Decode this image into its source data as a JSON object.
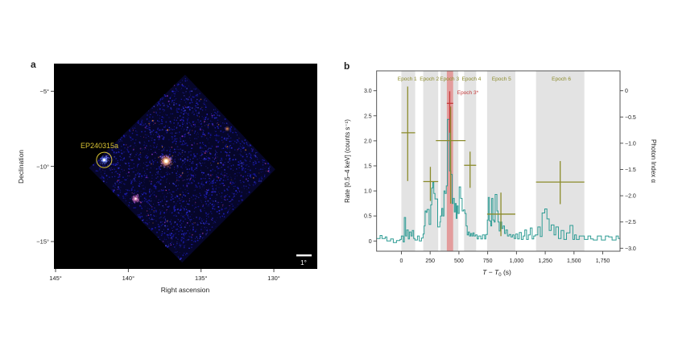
{
  "figure": {
    "panel_a": {
      "label": "a",
      "xlabel": "Right ascension",
      "ylabel": "Declination",
      "x_ticks": [
        {
          "value": 145,
          "label": "145°"
        },
        {
          "value": 140,
          "label": "140°"
        },
        {
          "value": 135,
          "label": "135°"
        },
        {
          "value": 130,
          "label": "130°"
        }
      ],
      "y_ticks": [
        {
          "value": -5,
          "label": "−5°"
        },
        {
          "value": -10,
          "label": "−10°"
        },
        {
          "value": -15,
          "label": "−15°"
        }
      ],
      "source_label": "EP240315a",
      "scale_bar_label": "1°",
      "label_color": "#d9c335"
    },
    "panel_b": {
      "label": "b",
      "xlabel_parts": [
        [
          "T",
          "i"
        ],
        [
          " − ",
          "n"
        ],
        [
          "T",
          "i"
        ],
        [
          "0",
          "sub"
        ],
        [
          " (s)",
          "n"
        ]
      ],
      "ylabel_left": "Rate [0.5–4 keV] (counts s⁻¹)",
      "ylabel_right": "Photon Index α",
      "x_tick_labels": [
        "0",
        "250",
        "500",
        "750",
        "1,000",
        "1,250",
        "1,500",
        "1,750"
      ],
      "y_tick_labels_left": [
        "0",
        "0.5",
        "1.0",
        "1.5",
        "2.0",
        "2.5",
        "3.0"
      ],
      "y_tick_labels_right": [
        "0",
        "−0.5",
        "−1.0",
        "−1.5",
        "−2.0",
        "−2.5",
        "−3.0"
      ],
      "colors": {
        "light_curve": "#2d9c94",
        "epoch_olive": "#8b8b2b",
        "epoch_red": "#c43a3a",
        "band_gray": "#e3e3e3",
        "band_red": "#e39c9c"
      }
    }
  },
  "chart_data": [
    {
      "type": "heatmap",
      "title": "X-ray sky image (WXT field of view)",
      "xlabel": "Right ascension",
      "ylabel": "Declination",
      "x_ticks_deg": [
        145,
        140,
        135,
        130
      ],
      "y_ticks_deg": [
        -5,
        -10,
        -15
      ],
      "x_range_deg": [
        145.1,
        127.0
      ],
      "y_range_deg": [
        -3.2,
        -16.8
      ],
      "field_diamond_deg": [
        [
          136.1,
          -3.9
        ],
        [
          129.9,
          -10.2
        ],
        [
          136.3,
          -16.4
        ],
        [
          142.7,
          -10.1
        ]
      ],
      "sources": [
        {
          "name": "EP240315a",
          "ra": 141.66,
          "dec": -9.57,
          "circled": true
        },
        {
          "name": "bright-source",
          "ra": 137.4,
          "dec": -9.65,
          "circled": false
        },
        {
          "name": "source-2",
          "ra": 139.5,
          "dec": -12.15,
          "circled": false
        },
        {
          "name": "faint-source",
          "ra": 133.2,
          "dec": -7.5,
          "circled": false
        }
      ],
      "annotation": "EP240315a",
      "scale_bar_deg": 1
    },
    {
      "type": "line",
      "xlabel": "T − T₀ (s)",
      "ylabel_left": "Rate [0.5–4 keV] (counts s⁻¹)",
      "ylabel_right": "Photon Index α",
      "xlim": [
        -215,
        1900
      ],
      "ylim_left": [
        -0.2,
        3.4
      ],
      "ylim_right": [
        0.37,
        -3.05
      ],
      "x_ticks": [
        0,
        250,
        500,
        750,
        1000,
        1250,
        1500,
        1750
      ],
      "y_ticks_left": [
        0,
        0.5,
        1.0,
        1.5,
        2.0,
        2.5,
        3.0
      ],
      "y_ticks_right": [
        0,
        -0.5,
        -1.0,
        -1.5,
        -2.0,
        -2.5,
        -3.0
      ],
      "grid": false,
      "light_curve_step": [
        [
          -215,
          0.05
        ],
        [
          -185,
          0.11
        ],
        [
          -168,
          0.05
        ],
        [
          -140,
          0.08
        ],
        [
          -126,
          0.0
        ],
        [
          -93,
          0.04
        ],
        [
          -70,
          -0.03
        ],
        [
          -42,
          0.01
        ],
        [
          -12,
          0.03
        ],
        [
          0,
          0.1
        ],
        [
          16,
          -0.02
        ],
        [
          26,
          0.47
        ],
        [
          37,
          0.1
        ],
        [
          47,
          0.22
        ],
        [
          60,
          0.04
        ],
        [
          70,
          0.18
        ],
        [
          84,
          0.1
        ],
        [
          95,
          0.21
        ],
        [
          107,
          0.05
        ],
        [
          118,
          0.02
        ],
        [
          140,
          0.1
        ],
        [
          156,
          0.0
        ],
        [
          175,
          0.06
        ],
        [
          189,
          0.14
        ],
        [
          198,
          0.3
        ],
        [
          206,
          0.6
        ],
        [
          215,
          0.57
        ],
        [
          224,
          0.63
        ],
        [
          241,
          0.33
        ],
        [
          255,
          0.72
        ],
        [
          264,
          1.06
        ],
        [
          273,
          1.17
        ],
        [
          282,
          0.95
        ],
        [
          292,
          0.84
        ],
        [
          315,
          0.28
        ],
        [
          334,
          0.38
        ],
        [
          340,
          0.5
        ],
        [
          350,
          0.65
        ],
        [
          360,
          0.5
        ],
        [
          370,
          1.0
        ],
        [
          380,
          0.95
        ],
        [
          390,
          1.1
        ],
        [
          400,
          2.43
        ],
        [
          418,
          1.4
        ],
        [
          430,
          1.33
        ],
        [
          441,
          0.75
        ],
        [
          450,
          0.85
        ],
        [
          460,
          0.58
        ],
        [
          468,
          0.75
        ],
        [
          476,
          0.45
        ],
        [
          484,
          0.7
        ],
        [
          492,
          0.55
        ],
        [
          502,
          1.08
        ],
        [
          515,
          0.85
        ],
        [
          528,
          0.6
        ],
        [
          540,
          0.62
        ],
        [
          552,
          0.55
        ],
        [
          562,
          0.3
        ],
        [
          572,
          0.12
        ],
        [
          582,
          0.18
        ],
        [
          592,
          0.1
        ],
        [
          602,
          0.15
        ],
        [
          612,
          0.1
        ],
        [
          622,
          0.16
        ],
        [
          632,
          0.1
        ],
        [
          645,
          0.12
        ],
        [
          658,
          0.04
        ],
        [
          670,
          0.1
        ],
        [
          690,
          0.04
        ],
        [
          705,
          0.12
        ],
        [
          724,
          0.04
        ],
        [
          734,
          0.13
        ],
        [
          747,
          0.42
        ],
        [
          755,
          0.87
        ],
        [
          765,
          0.4
        ],
        [
          777,
          0.3
        ],
        [
          785,
          0.85
        ],
        [
          795,
          0.42
        ],
        [
          806,
          0.38
        ],
        [
          815,
          0.93
        ],
        [
          830,
          0.6
        ],
        [
          840,
          0.38
        ],
        [
          850,
          0.2
        ],
        [
          860,
          0.38
        ],
        [
          872,
          0.25
        ],
        [
          884,
          0.3
        ],
        [
          896,
          0.15
        ],
        [
          908,
          0.22
        ],
        [
          922,
          0.1
        ],
        [
          936,
          0.13
        ],
        [
          952,
          0.08
        ],
        [
          966,
          0.12
        ],
        [
          980,
          0.05
        ],
        [
          995,
          0.14
        ],
        [
          1010,
          0.04
        ],
        [
          1025,
          0.17
        ],
        [
          1042,
          0.03
        ],
        [
          1058,
          0.1
        ],
        [
          1072,
          0.22
        ],
        [
          1088,
          0.03
        ],
        [
          1103,
          0.12
        ],
        [
          1120,
          0.26
        ],
        [
          1136,
          0.04
        ],
        [
          1150,
          0.1
        ],
        [
          1164,
          0.12
        ],
        [
          1186,
          0.28
        ],
        [
          1207,
          0.09
        ],
        [
          1223,
          0.56
        ],
        [
          1246,
          0.64
        ],
        [
          1265,
          0.44
        ],
        [
          1284,
          0.21
        ],
        [
          1302,
          0.32
        ],
        [
          1326,
          0.12
        ],
        [
          1342,
          0.28
        ],
        [
          1365,
          0.05
        ],
        [
          1388,
          0.21
        ],
        [
          1412,
          0.03
        ],
        [
          1435,
          0.16
        ],
        [
          1465,
          0.31
        ],
        [
          1490,
          0.03
        ],
        [
          1505,
          0.12
        ],
        [
          1520,
          0.03
        ],
        [
          1545,
          0.1
        ],
        [
          1590,
          0.03
        ],
        [
          1621,
          0.1
        ],
        [
          1645,
          0.04
        ],
        [
          1668,
          0.02
        ],
        [
          1703,
          0.1
        ],
        [
          1738,
          0.02
        ],
        [
          1773,
          0.1
        ],
        [
          1801,
          0.08
        ],
        [
          1831,
          0.02
        ],
        [
          1866,
          0.1
        ],
        [
          1885,
          0.05
        ]
      ],
      "t_end": 1900,
      "epochs": [
        {
          "name": "Epoch 1",
          "band": [
            0,
            120
          ],
          "label_t": 51,
          "t_center": 55,
          "cross_t_span": [
            0,
            120
          ],
          "alpha": -0.8,
          "alpha_range": [
            0.08,
            -1.72
          ]
        },
        {
          "name": "Epoch 2",
          "band": [
            190,
            320
          ],
          "label_t": 243,
          "t_center": 252,
          "cross_t_span": [
            190,
            320
          ],
          "alpha": -1.73,
          "alpha_range": [
            -1.45,
            -2.1
          ]
        },
        {
          "name": "Epoch 3",
          "band": [
            340,
            495
          ],
          "label_t": 418,
          "t_center": 428,
          "cross_t_span": [
            300,
            558
          ],
          "alpha": -0.95,
          "alpha_range": [
            -0.3,
            -2.15
          ]
        },
        {
          "name": "Epoch 4",
          "band": [
            545,
            650
          ],
          "label_t": 609,
          "t_center": 597,
          "cross_t_span": [
            545,
            650
          ],
          "alpha": -1.42,
          "alpha_range": [
            -1.16,
            -1.85
          ]
        },
        {
          "name": "Epoch 5",
          "band": [
            745,
            990
          ],
          "label_t": 870,
          "t_center": 865,
          "cross_t_span": [
            745,
            990
          ],
          "alpha": -2.35,
          "alpha_range": [
            -1.94,
            -2.77
          ]
        },
        {
          "name": "Epoch 6",
          "band": [
            1170,
            1590
          ],
          "label_t": 1390,
          "t_center": 1380,
          "cross_t_span": [
            1170,
            1590
          ],
          "alpha": -1.74,
          "alpha_range": [
            -1.34,
            -2.16
          ]
        }
      ],
      "epoch3_star": {
        "name": "Epoch 3*",
        "band": [
          395,
          450
        ],
        "t_center": 420,
        "cross_t_span": [
          395,
          450
        ],
        "alpha": -0.24,
        "alpha_range": [
          -0.01,
          -0.8
        ]
      }
    }
  ]
}
